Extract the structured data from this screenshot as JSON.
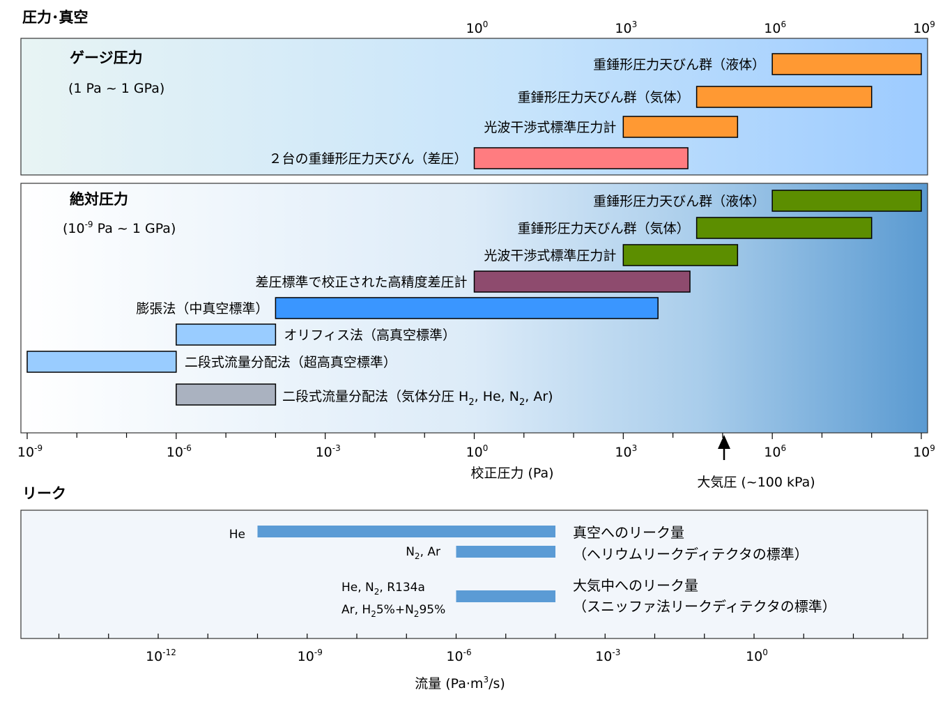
{
  "sections": {
    "pressure": "圧力･真空",
    "leak": "リーク"
  },
  "colors": {
    "orange": "#ff9933",
    "pink": "#ff7c80",
    "green": "#5c8e00",
    "maroon": "#8e4b6e",
    "blue": "#3a96ff",
    "light_blue": "#99ccff",
    "gray": "#aab2c0",
    "leak_bar": "#5b9bd5"
  },
  "chart_data": [
    {
      "type": "bar",
      "orientation": "horizontal",
      "scale": "log",
      "panel": "gauge",
      "title": "ゲージ圧力",
      "subtitle": "(1 Pa ~ 1 GPa)",
      "xlim": [
        1,
        1000000000
      ],
      "top_ticks": [
        "10^0",
        "10^3",
        "10^6",
        "10^9"
      ],
      "bars": [
        {
          "label": "重錘形圧力天びん群（液体）",
          "from": 1000000,
          "to": 1000000000,
          "color": "orange"
        },
        {
          "label": "重錘形圧力天びん群（気体）",
          "from": 30000,
          "to": 100000000,
          "color": "orange"
        },
        {
          "label": "光波干渉式標準圧力計",
          "from": 1000,
          "to": 200000,
          "color": "orange"
        },
        {
          "label": "２台の重錘形圧力天びん（差圧）",
          "from": 1,
          "to": 20000,
          "color": "pink"
        }
      ]
    },
    {
      "type": "bar",
      "orientation": "horizontal",
      "scale": "log",
      "panel": "absolute",
      "title": "絶対圧力",
      "subtitle": "(10^-9 Pa ~ 1 GPa)",
      "xlim": [
        1e-09,
        1000000000
      ],
      "xlabel": "校正圧力 (Pa)",
      "x_ticks": [
        "10^-9",
        "10^-6",
        "10^-3",
        "10^0",
        "10^3",
        "10^6",
        "10^9"
      ],
      "annotation": {
        "label": "大気圧 (~100 kPa)",
        "x": 100000
      },
      "bars": [
        {
          "label": "重錘形圧力天びん群（液体）",
          "from": 1000000,
          "to": 1000000000,
          "color": "green"
        },
        {
          "label": "重錘形圧力天びん群（気体）",
          "from": 30000,
          "to": 100000000,
          "color": "green"
        },
        {
          "label": "光波干渉式標準圧力計",
          "from": 1000,
          "to": 200000,
          "color": "green"
        },
        {
          "label": "差圧標準で校正された高精度差圧計",
          "from": 1,
          "to": 22000,
          "color": "maroon"
        },
        {
          "label": "膨張法（中真空標準）",
          "from": 0.0001,
          "to": 5000,
          "color": "blue"
        },
        {
          "label": "オリフィス法（高真空標準）",
          "from": 1e-06,
          "to": 0.0001,
          "color": "light_blue"
        },
        {
          "label": "二段式流量分配法（超高真空標準）",
          "from": 1e-09,
          "to": 1e-06,
          "color": "light_blue"
        },
        {
          "label": "二段式流量分配法（気体分圧 H₂, He, N₂, Ar）",
          "from": 1e-06,
          "to": 0.0001,
          "color": "gray"
        }
      ]
    },
    {
      "type": "bar",
      "orientation": "horizontal",
      "scale": "log",
      "panel": "leak",
      "xlim": [
        1e-15,
        1000
      ],
      "xlabel": "流量 (Pa·m³/s)",
      "x_ticks": [
        "10^-12",
        "10^-9",
        "10^-6",
        "10^-3",
        "10^0"
      ],
      "bars": [
        {
          "label": "He",
          "from": 1e-10,
          "to": 0.0001,
          "color": "leak_bar"
        },
        {
          "label": "N₂, Ar",
          "from": 1e-06,
          "to": 0.0001,
          "color": "leak_bar"
        },
        {
          "label": "He, N₂, R134a / Ar, H₂5%+N₂95%",
          "from": 1e-06,
          "to": 0.0001,
          "color": "leak_bar"
        }
      ],
      "group_labels": [
        {
          "line1": "真空へのリーク量",
          "line2": "（ヘリウムリークディテクタの標準）"
        },
        {
          "line1": "大気中へのリーク量",
          "line2": "（スニッファ法リークディテクタの標準）"
        }
      ]
    }
  ]
}
